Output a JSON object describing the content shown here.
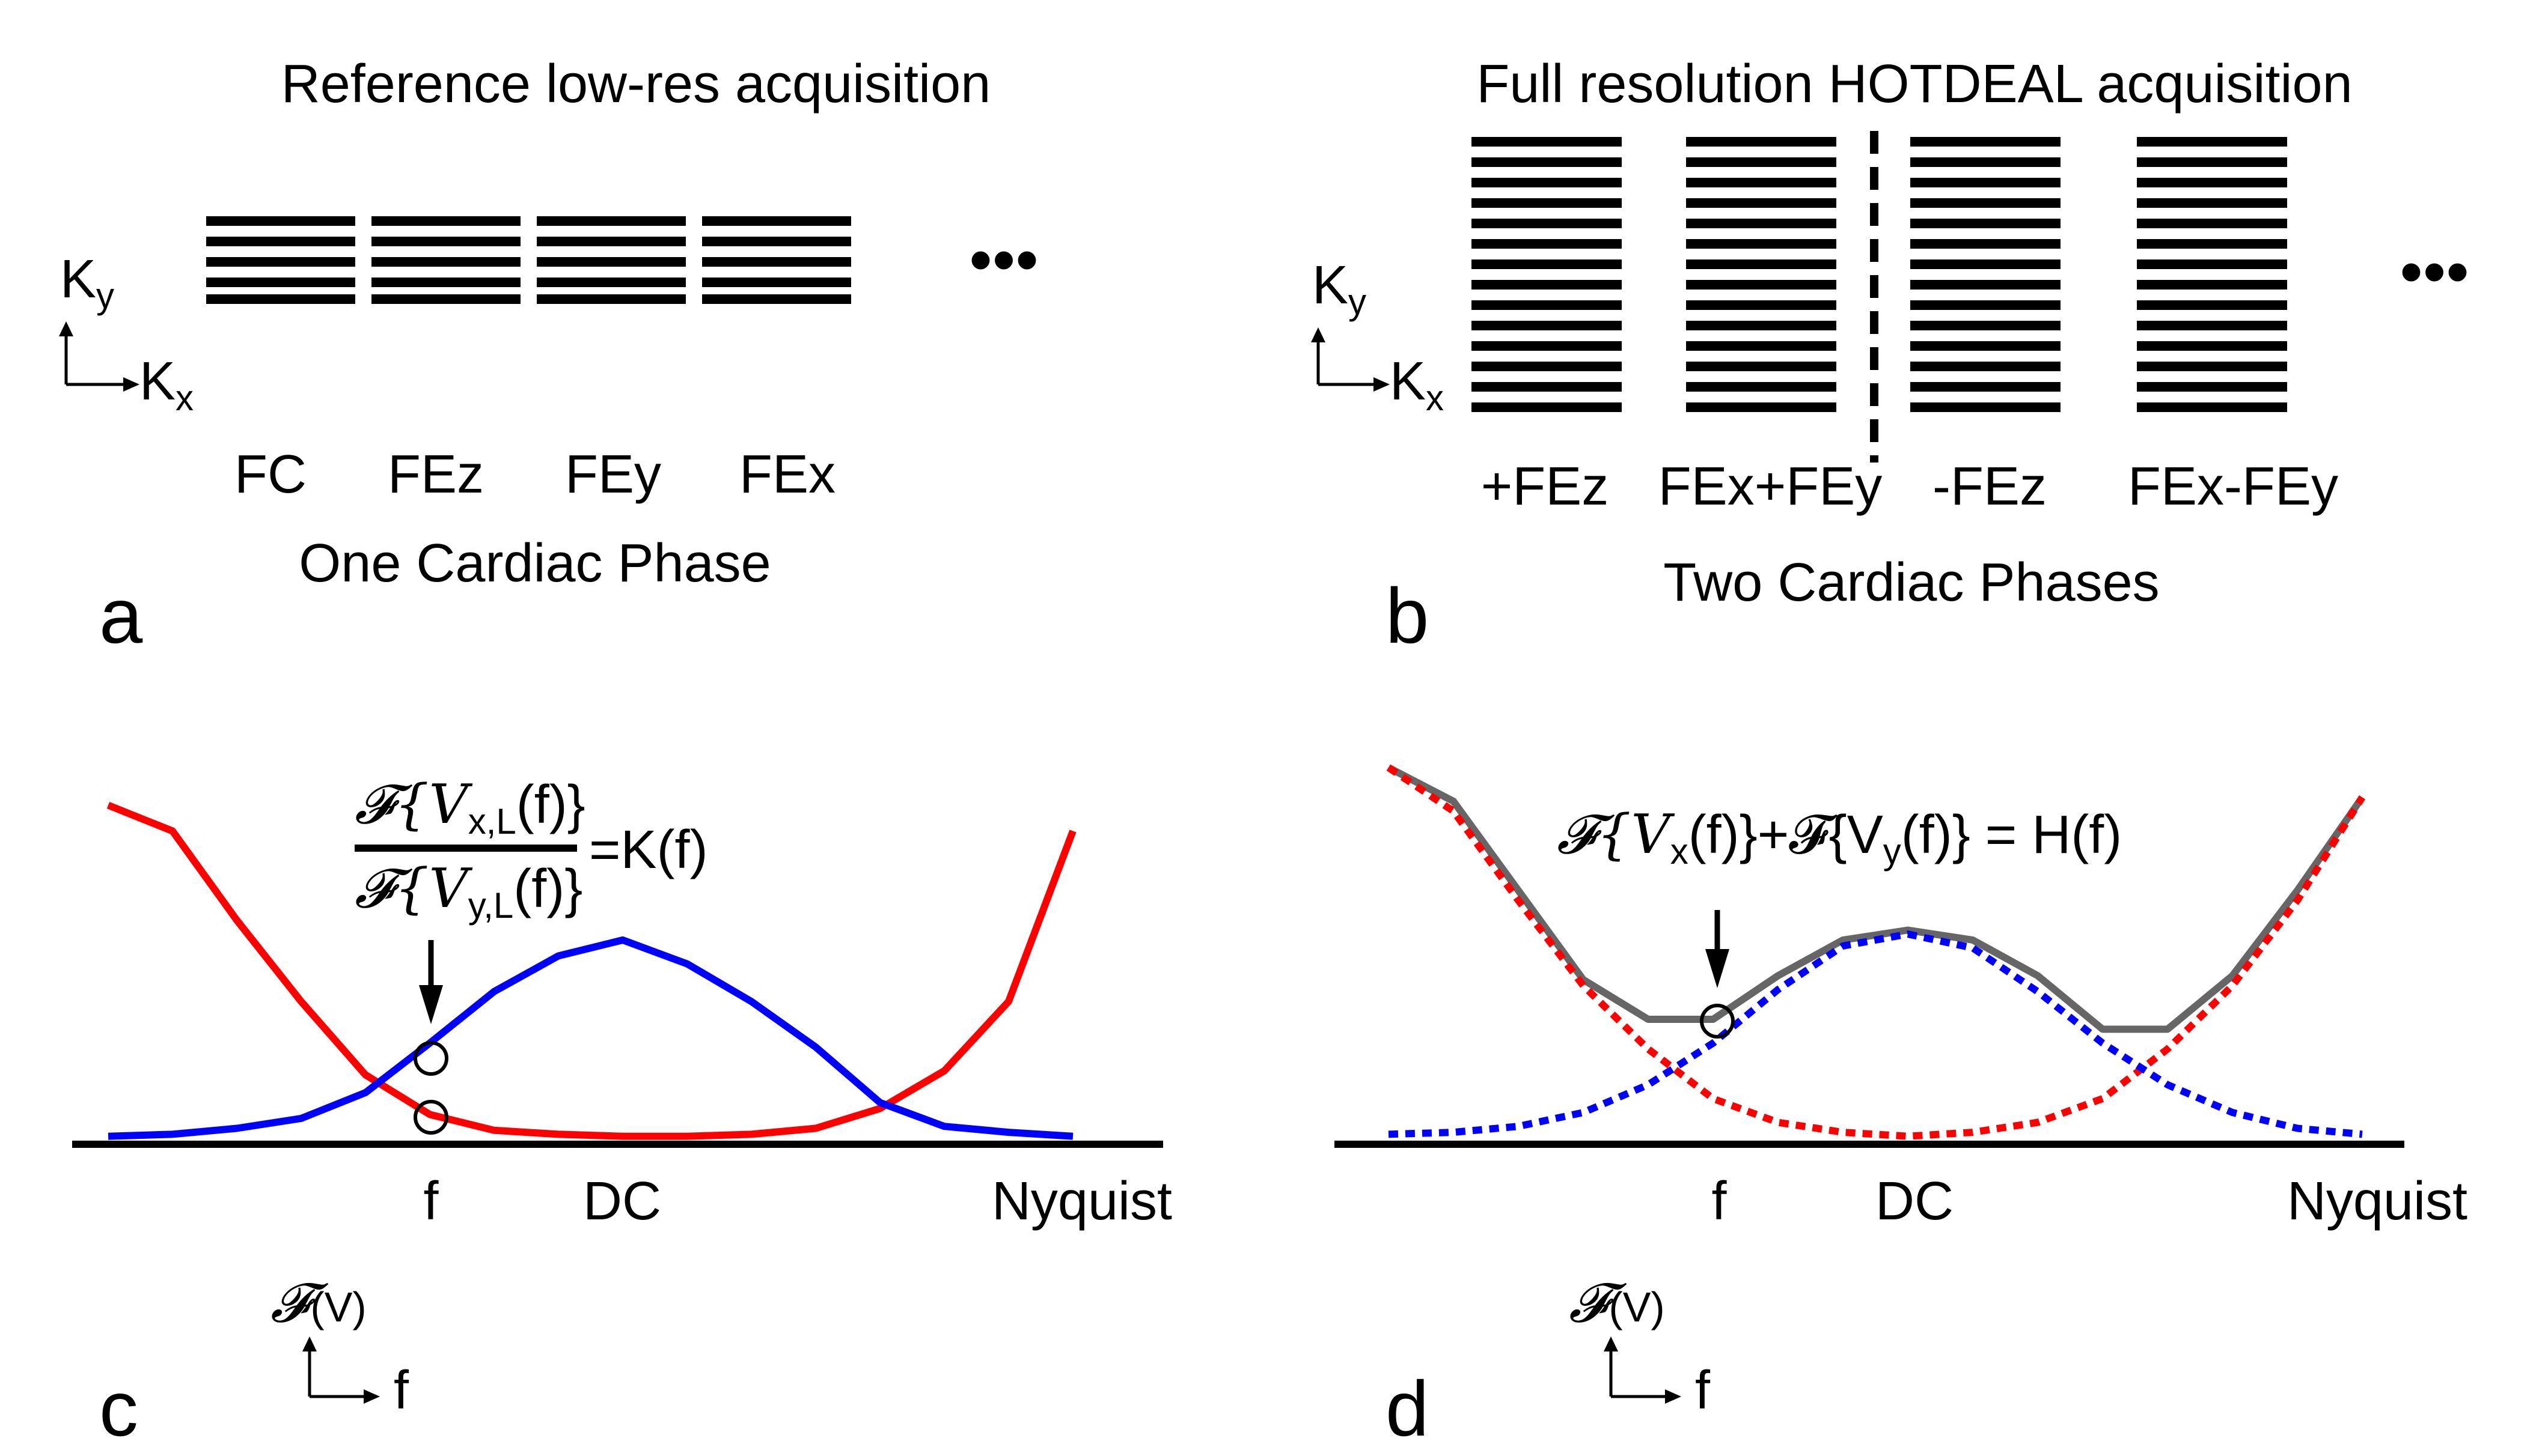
{
  "panel_a": {
    "title": "Reference low-res acquisition",
    "axis_ky": "K",
    "axis_ky_sub": "y",
    "axis_kx": "K",
    "axis_kx_sub": "x",
    "encodings": [
      "FC",
      "FEz",
      "FEy",
      "FEx"
    ],
    "caption": "One Cardiac Phase",
    "ellipsis": "•••",
    "letter": "a"
  },
  "panel_b": {
    "title": "Full resolution HOTDEAL acquisition",
    "axis_ky": "K",
    "axis_ky_sub": "y",
    "axis_kx": "K",
    "axis_kx_sub": "x",
    "encodings": [
      "+FEz",
      "FEx+FEy",
      "-FEz",
      "FEx-FEy"
    ],
    "caption": "Two Cardiac Phases",
    "ellipsis": "•••",
    "letter": "b"
  },
  "panel_c": {
    "formula_num": "𝓕{V",
    "formula_num_sub": "x,L",
    "formula_num_tail": "(f)}",
    "formula_den": "𝓕{V",
    "formula_den_sub": "y,L",
    "formula_den_tail": "(f)}",
    "formula_rhs": "=K(f)",
    "x_labels": [
      "f",
      "DC",
      "Nyquist"
    ],
    "legend_y": "𝓕",
    "legend_y_arg": "(V)",
    "legend_x": "f",
    "letter": "c"
  },
  "panel_d": {
    "formula_a": "𝓕{V",
    "formula_a_sub": "x",
    "formula_b": "(f)}+𝓕{V",
    "formula_b_sub": "y",
    "formula_c": "(f)} = H(f)",
    "x_labels": [
      "f",
      "DC",
      "Nyquist"
    ],
    "legend_y": "𝓕",
    "legend_y_arg": "(V)",
    "legend_x": "f",
    "letter": "d"
  },
  "colors": {
    "red": "#ff0000",
    "blue": "#0000ff",
    "gray": "#666666",
    "black": "#000000"
  },
  "chart_data": [
    {
      "type": "line",
      "panel": "c",
      "x_labels": [
        "f",
        "DC",
        "Nyquist"
      ],
      "series": [
        {
          "color": "#0000ff",
          "style": "solid",
          "x": [
            0,
            1,
            2,
            3,
            4,
            5,
            6,
            7,
            8,
            9,
            10,
            11,
            12,
            13,
            14,
            15
          ],
          "y": [
            0.01,
            0.02,
            0.05,
            0.1,
            0.23,
            0.48,
            0.74,
            0.92,
            1.0,
            0.88,
            0.69,
            0.46,
            0.18,
            0.06,
            0.03,
            0.01
          ]
        },
        {
          "color": "#ff0000",
          "style": "solid",
          "x": [
            0,
            1,
            2,
            3,
            4,
            5,
            6,
            7,
            8,
            9,
            10,
            11,
            12,
            13,
            14,
            15
          ],
          "y": [
            1.68,
            1.55,
            1.1,
            0.69,
            0.32,
            0.12,
            0.04,
            0.02,
            0.01,
            0.01,
            0.02,
            0.05,
            0.15,
            0.34,
            0.69,
            1.55
          ]
        }
      ],
      "markers_at_f": 2
    },
    {
      "type": "line",
      "panel": "d",
      "x_labels": [
        "f",
        "DC",
        "Nyquist"
      ],
      "series": [
        {
          "color": "#0000ff",
          "style": "dotted",
          "x": [
            0,
            1,
            2,
            3,
            4,
            5,
            6,
            7,
            8,
            9,
            10,
            11,
            12,
            13,
            14,
            15
          ],
          "y": [
            0.02,
            0.03,
            0.06,
            0.13,
            0.27,
            0.48,
            0.75,
            0.97,
            1.03,
            0.96,
            0.74,
            0.48,
            0.27,
            0.13,
            0.05,
            0.02
          ]
        },
        {
          "color": "#ff0000",
          "style": "dotted",
          "x": [
            0,
            1,
            2,
            3,
            4,
            5,
            6,
            7,
            8,
            9,
            10,
            11,
            12,
            13,
            14,
            15
          ],
          "y": [
            1.87,
            1.65,
            1.2,
            0.77,
            0.45,
            0.2,
            0.08,
            0.03,
            0.01,
            0.03,
            0.08,
            0.2,
            0.45,
            0.77,
            1.2,
            1.72
          ]
        },
        {
          "color": "#666666",
          "style": "solid",
          "x": [
            0,
            1,
            2,
            3,
            4,
            5,
            6,
            7,
            8,
            9,
            10,
            11,
            12,
            13,
            14,
            15
          ],
          "y": [
            1.87,
            1.7,
            1.25,
            0.8,
            0.6,
            0.6,
            0.82,
            1.0,
            1.05,
            1.0,
            0.82,
            0.55,
            0.55,
            0.82,
            1.25,
            1.72
          ]
        }
      ],
      "markers_at_f": 1
    }
  ]
}
